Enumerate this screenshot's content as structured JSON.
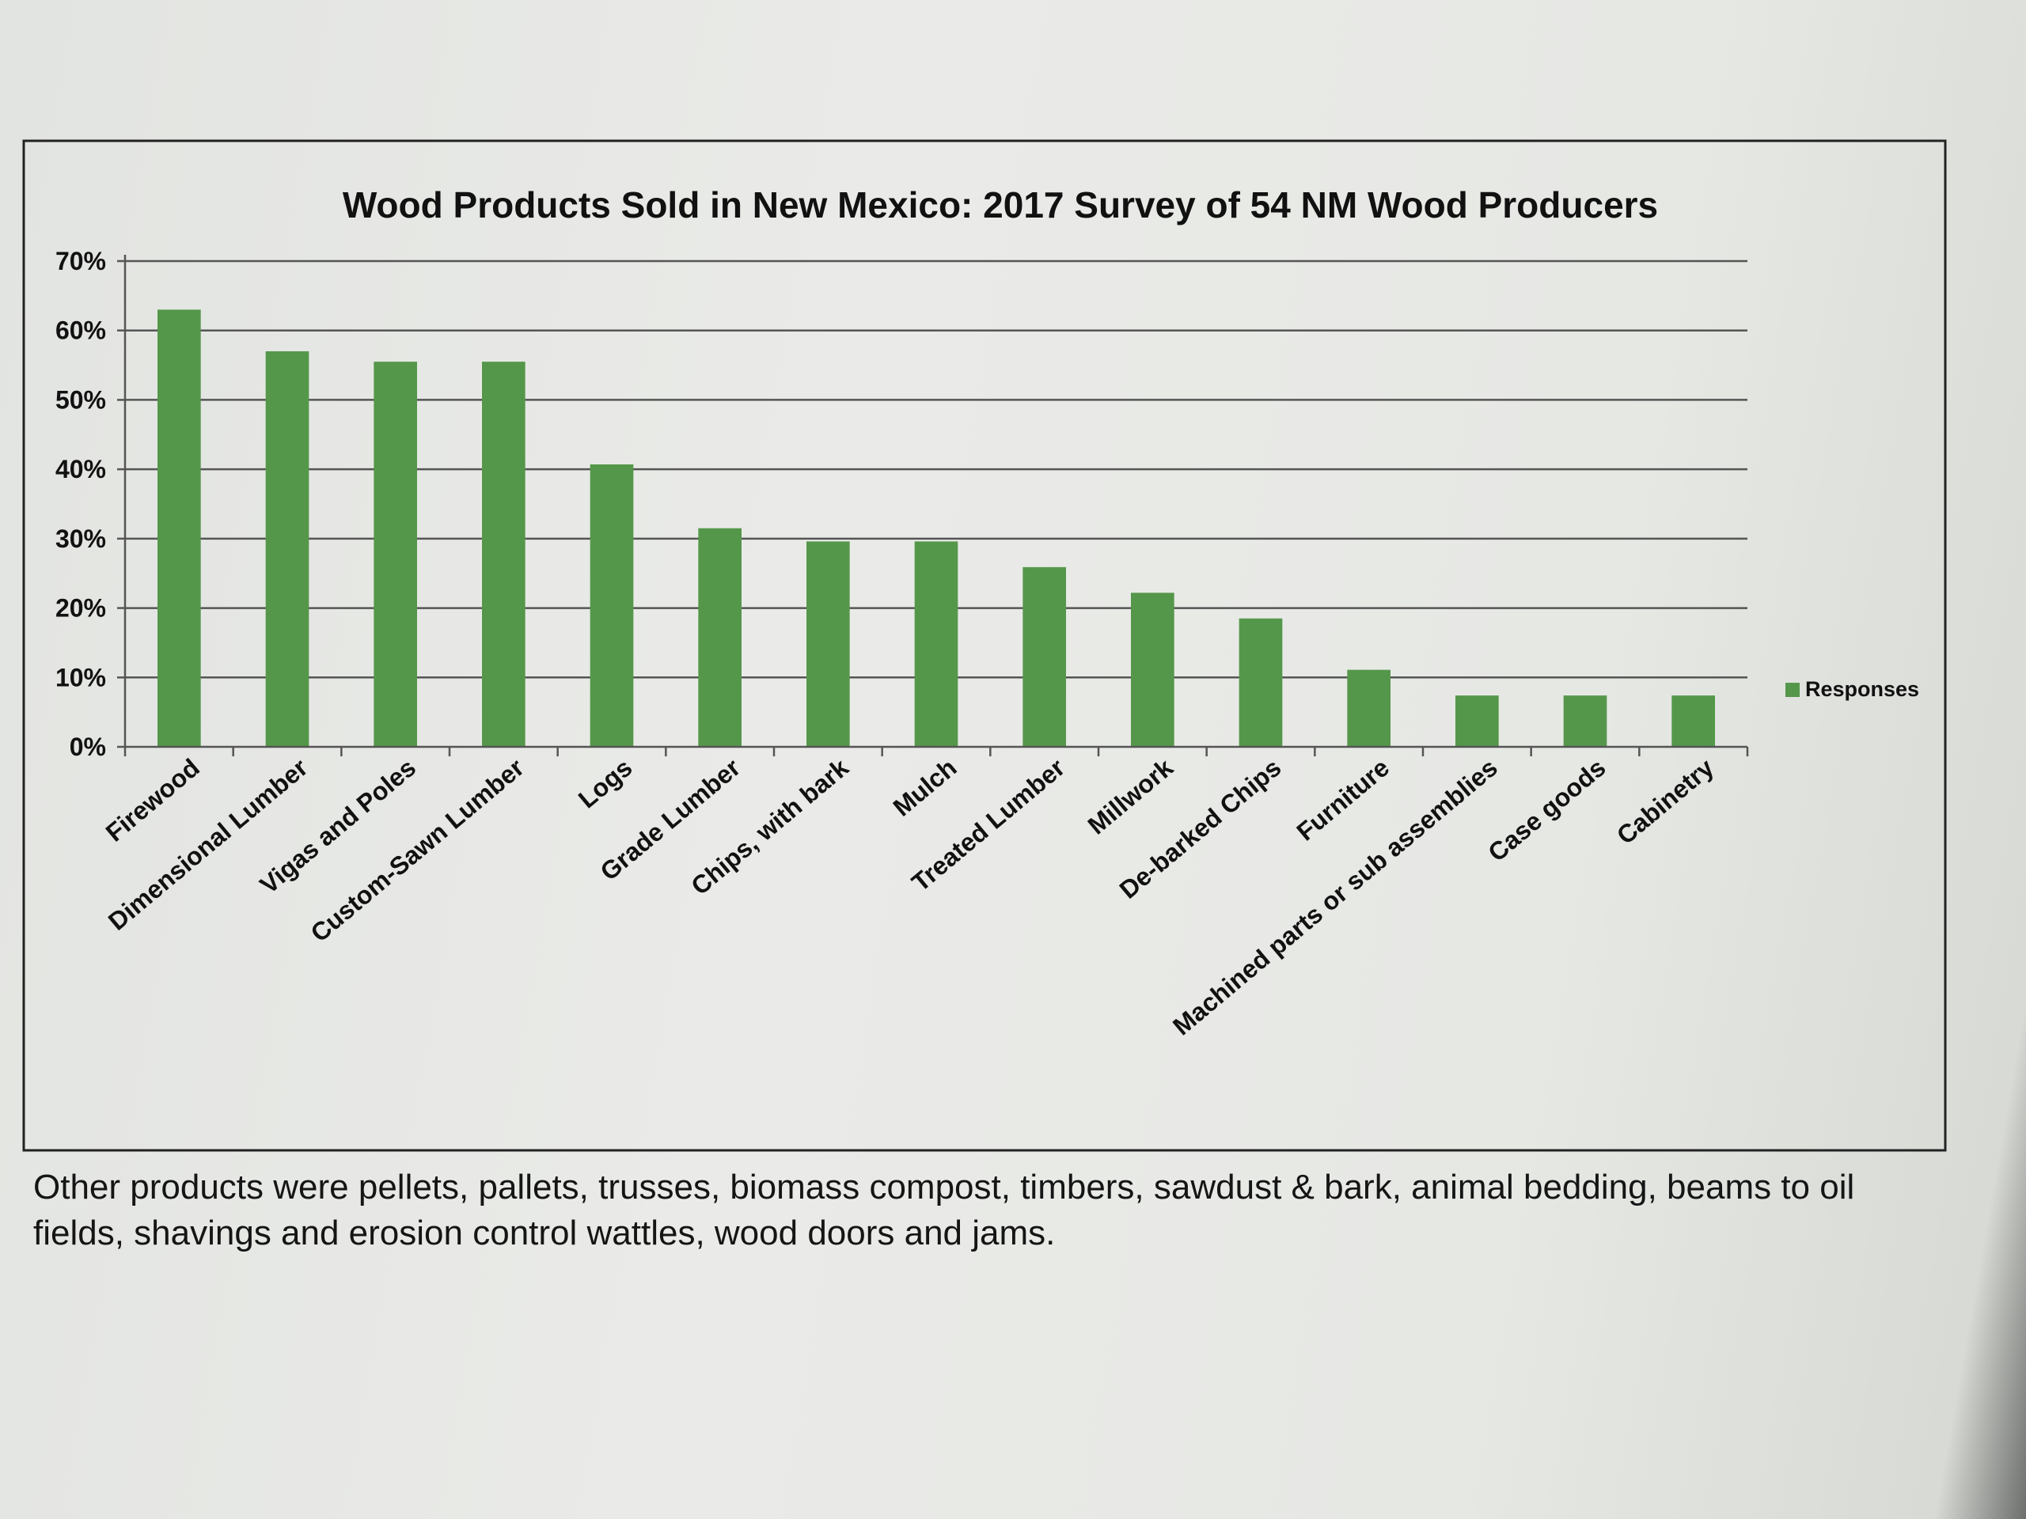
{
  "chart_data": {
    "type": "bar",
    "title": "Wood Products Sold in New Mexico: 2017 Survey of 54 NM Wood Producers",
    "xlabel": "",
    "ylabel": "",
    "ylim": [
      0,
      0.7
    ],
    "y_ticks": [
      "0%",
      "10%",
      "20%",
      "30%",
      "40%",
      "50%",
      "60%",
      "70%"
    ],
    "grid": true,
    "legend_position": "right",
    "categories": [
      "Firewood",
      "Dimensional Lumber",
      "Vigas and Poles",
      "Custom-Sawn Lumber",
      "Logs",
      "Grade Lumber",
      "Chips, with bark",
      "Mulch",
      "Treated Lumber",
      "Millwork",
      "De-barked Chips",
      "Furniture",
      "Machined parts or sub assemblies",
      "Case goods",
      "Cabinetry"
    ],
    "series": [
      {
        "name": "Responses",
        "color": "#55974a",
        "values": [
          0.63,
          0.57,
          0.555,
          0.555,
          0.407,
          0.315,
          0.296,
          0.296,
          0.259,
          0.222,
          0.185,
          0.111,
          0.074,
          0.074,
          0.074
        ]
      }
    ]
  },
  "caption": "Other products were pellets, pallets, trusses, biomass compost, timbers, sawdust & bark, animal bedding, beams to oil fields, shavings and erosion control wattles, wood doors and jams."
}
